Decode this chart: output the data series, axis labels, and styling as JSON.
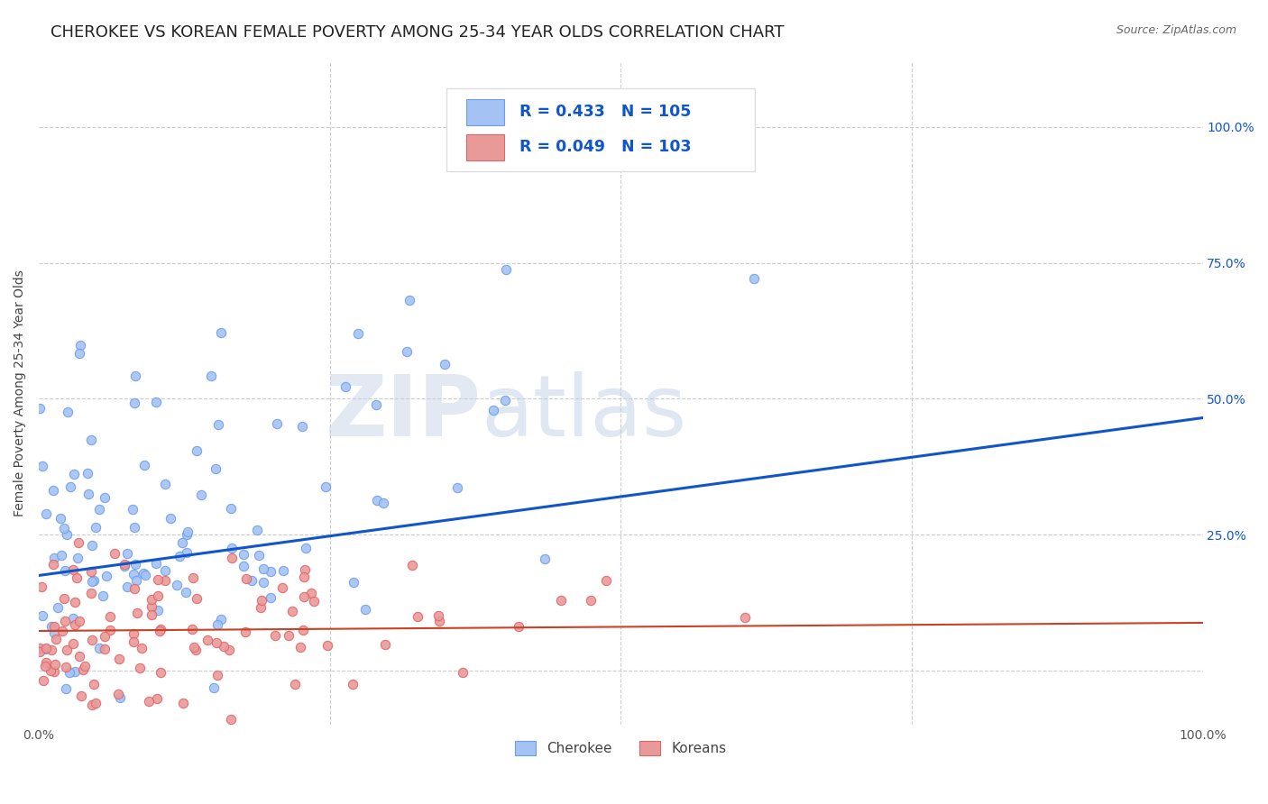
{
  "title": "CHEROKEE VS KOREAN FEMALE POVERTY AMONG 25-34 YEAR OLDS CORRELATION CHART",
  "source": "Source: ZipAtlas.com",
  "ylabel": "Female Poverty Among 25-34 Year Olds",
  "xlim": [
    0,
    1
  ],
  "ylim": [
    -0.1,
    1.12
  ],
  "cherokee_color": "#a4c2f4",
  "cherokee_edge_color": "#6d9eeb",
  "korean_color": "#ea9999",
  "korean_edge_color": "#e06666",
  "cherokee_line_color": "#1155cc",
  "korean_line_color": "#cc4125",
  "cherokee_R": 0.433,
  "cherokee_N": 105,
  "korean_R": 0.049,
  "korean_N": 103,
  "legend_label_cherokee": "Cherokee",
  "legend_label_korean": "Koreans",
  "watermark_zip": "ZIP",
  "watermark_atlas": "atlas",
  "background_color": "#ffffff",
  "grid_color": "#cccccc",
  "title_fontsize": 13,
  "axis_label_fontsize": 10,
  "tick_fontsize": 10,
  "source_fontsize": 9,
  "cherokee_line_y0": 0.175,
  "cherokee_line_y1": 0.465,
  "korean_line_y0": 0.073,
  "korean_line_y1": 0.088
}
